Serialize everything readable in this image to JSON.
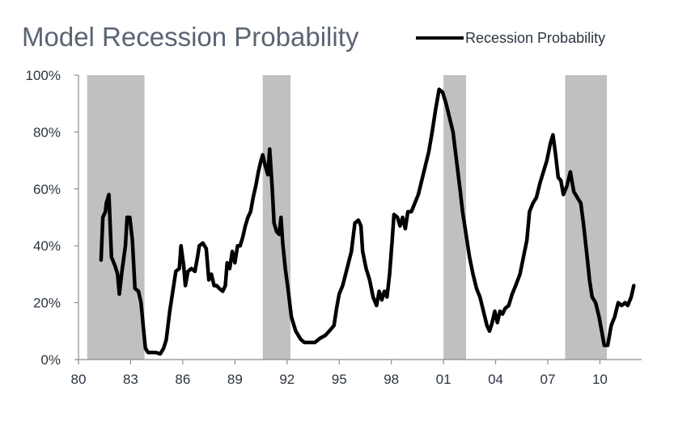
{
  "chart_data": {
    "type": "line",
    "title": "Model Recession Probability",
    "legend": {
      "label": "Recession Probability",
      "placement": "top-right"
    },
    "colors": {
      "line": "#000000",
      "recession_band": "#c0c0c0",
      "title": "#5a6573",
      "tick": "#2b3440"
    },
    "xlabel": "",
    "ylabel": "",
    "xlim": [
      1980,
      2012.4
    ],
    "ylim": [
      0,
      100
    ],
    "x_ticks": [
      {
        "value": 1980,
        "label": "80"
      },
      {
        "value": 1983,
        "label": "83"
      },
      {
        "value": 1986,
        "label": "86"
      },
      {
        "value": 1989,
        "label": "89"
      },
      {
        "value": 1992,
        "label": "92"
      },
      {
        "value": 1995,
        "label": "95"
      },
      {
        "value": 1998,
        "label": "98"
      },
      {
        "value": 2001,
        "label": "01"
      },
      {
        "value": 2004,
        "label": "04"
      },
      {
        "value": 2007,
        "label": "07"
      },
      {
        "value": 2010,
        "label": "10"
      }
    ],
    "y_ticks": [
      {
        "value": 0,
        "label": "0%"
      },
      {
        "value": 20,
        "label": "20%"
      },
      {
        "value": 40,
        "label": "40%"
      },
      {
        "value": 60,
        "label": "60%"
      },
      {
        "value": 80,
        "label": "80%"
      },
      {
        "value": 100,
        "label": "100%"
      }
    ],
    "recession_bands": [
      {
        "start": 1980.5,
        "end": 1983.8
      },
      {
        "start": 1990.6,
        "end": 1992.2
      },
      {
        "start": 2001.0,
        "end": 2002.3
      },
      {
        "start": 2008.0,
        "end": 2010.4
      }
    ],
    "series": [
      {
        "name": "Recession Probability",
        "points": [
          [
            1981.3,
            35
          ],
          [
            1981.4,
            50
          ],
          [
            1981.55,
            52
          ],
          [
            1981.6,
            55
          ],
          [
            1981.75,
            58
          ],
          [
            1981.9,
            36
          ],
          [
            1982.1,
            33
          ],
          [
            1982.25,
            30
          ],
          [
            1982.35,
            23
          ],
          [
            1982.5,
            31
          ],
          [
            1982.7,
            40
          ],
          [
            1982.8,
            50
          ],
          [
            1982.95,
            50
          ],
          [
            1983.1,
            42
          ],
          [
            1983.25,
            25
          ],
          [
            1983.45,
            24
          ],
          [
            1983.6,
            20
          ],
          [
            1983.75,
            10
          ],
          [
            1983.85,
            4
          ],
          [
            1984.0,
            2.5
          ],
          [
            1984.2,
            2.5
          ],
          [
            1984.45,
            2.5
          ],
          [
            1984.7,
            2
          ],
          [
            1984.9,
            4
          ],
          [
            1985.05,
            7
          ],
          [
            1985.25,
            17
          ],
          [
            1985.45,
            25
          ],
          [
            1985.6,
            31
          ],
          [
            1985.8,
            32
          ],
          [
            1985.9,
            40
          ],
          [
            1986.05,
            33
          ],
          [
            1986.15,
            26
          ],
          [
            1986.3,
            31
          ],
          [
            1986.5,
            32
          ],
          [
            1986.7,
            31
          ],
          [
            1986.85,
            36
          ],
          [
            1986.95,
            40
          ],
          [
            1987.15,
            41
          ],
          [
            1987.35,
            39
          ],
          [
            1987.5,
            28
          ],
          [
            1987.65,
            30
          ],
          [
            1987.8,
            26
          ],
          [
            1987.95,
            26
          ],
          [
            1988.1,
            25
          ],
          [
            1988.3,
            24
          ],
          [
            1988.45,
            26
          ],
          [
            1988.55,
            34
          ],
          [
            1988.7,
            32
          ],
          [
            1988.85,
            38
          ],
          [
            1989.0,
            34
          ],
          [
            1989.15,
            40
          ],
          [
            1989.3,
            40
          ],
          [
            1989.45,
            43
          ],
          [
            1989.6,
            47
          ],
          [
            1989.75,
            50
          ],
          [
            1989.9,
            52
          ],
          [
            1990.05,
            57
          ],
          [
            1990.2,
            61
          ],
          [
            1990.35,
            66
          ],
          [
            1990.5,
            70
          ],
          [
            1990.6,
            72
          ],
          [
            1990.75,
            68
          ],
          [
            1990.9,
            65
          ],
          [
            1991.0,
            74
          ],
          [
            1991.15,
            60
          ],
          [
            1991.25,
            48
          ],
          [
            1991.4,
            45
          ],
          [
            1991.55,
            44
          ],
          [
            1991.65,
            50
          ],
          [
            1991.75,
            41
          ],
          [
            1991.9,
            32
          ],
          [
            1992.05,
            25
          ],
          [
            1992.25,
            15
          ],
          [
            1992.5,
            10
          ],
          [
            1992.8,
            7
          ],
          [
            1993.0,
            6
          ],
          [
            1993.3,
            6
          ],
          [
            1993.6,
            6
          ],
          [
            1993.9,
            7.5
          ],
          [
            1994.2,
            8.5
          ],
          [
            1994.5,
            10.5
          ],
          [
            1994.7,
            12
          ],
          [
            1994.85,
            18
          ],
          [
            1995.0,
            23
          ],
          [
            1995.2,
            26
          ],
          [
            1995.45,
            32
          ],
          [
            1995.7,
            38
          ],
          [
            1995.9,
            48
          ],
          [
            1996.1,
            49
          ],
          [
            1996.25,
            47
          ],
          [
            1996.35,
            38
          ],
          [
            1996.55,
            32
          ],
          [
            1996.75,
            28
          ],
          [
            1996.95,
            22
          ],
          [
            1997.15,
            19
          ],
          [
            1997.3,
            24
          ],
          [
            1997.45,
            21
          ],
          [
            1997.6,
            24
          ],
          [
            1997.75,
            22
          ],
          [
            1997.9,
            30
          ],
          [
            1998.05,
            42
          ],
          [
            1998.15,
            51
          ],
          [
            1998.35,
            50
          ],
          [
            1998.5,
            47
          ],
          [
            1998.65,
            50
          ],
          [
            1998.8,
            46
          ],
          [
            1998.95,
            52
          ],
          [
            1999.15,
            52
          ],
          [
            1999.35,
            55
          ],
          [
            1999.55,
            58
          ],
          [
            1999.75,
            63
          ],
          [
            1999.95,
            68
          ],
          [
            2000.15,
            73
          ],
          [
            2000.35,
            80
          ],
          [
            2000.55,
            88
          ],
          [
            2000.75,
            95
          ],
          [
            2000.95,
            94
          ],
          [
            2001.15,
            90
          ],
          [
            2001.35,
            85
          ],
          [
            2001.55,
            80
          ],
          [
            2001.75,
            70
          ],
          [
            2001.95,
            60
          ],
          [
            2002.1,
            52
          ],
          [
            2002.3,
            44
          ],
          [
            2002.5,
            36
          ],
          [
            2002.7,
            30
          ],
          [
            2002.9,
            25
          ],
          [
            2003.1,
            22
          ],
          [
            2003.3,
            17
          ],
          [
            2003.5,
            12
          ],
          [
            2003.65,
            10
          ],
          [
            2003.8,
            13
          ],
          [
            2003.95,
            17
          ],
          [
            2004.1,
            13
          ],
          [
            2004.25,
            17
          ],
          [
            2004.4,
            16
          ],
          [
            2004.55,
            18
          ],
          [
            2004.75,
            19
          ],
          [
            2004.95,
            23
          ],
          [
            2005.15,
            26
          ],
          [
            2005.4,
            30
          ],
          [
            2005.6,
            36
          ],
          [
            2005.8,
            42
          ],
          [
            2005.95,
            52
          ],
          [
            2006.15,
            55
          ],
          [
            2006.35,
            57
          ],
          [
            2006.55,
            62
          ],
          [
            2006.75,
            66
          ],
          [
            2006.95,
            70
          ],
          [
            2007.15,
            76
          ],
          [
            2007.3,
            79
          ],
          [
            2007.45,
            72
          ],
          [
            2007.6,
            64
          ],
          [
            2007.75,
            63
          ],
          [
            2007.9,
            58
          ],
          [
            2008.1,
            61
          ],
          [
            2008.3,
            66
          ],
          [
            2008.5,
            59
          ],
          [
            2008.7,
            57
          ],
          [
            2008.9,
            55
          ],
          [
            2009.05,
            48
          ],
          [
            2009.25,
            37
          ],
          [
            2009.4,
            28
          ],
          [
            2009.55,
            22
          ],
          [
            2009.75,
            20
          ],
          [
            2009.95,
            15
          ],
          [
            2010.1,
            10
          ],
          [
            2010.25,
            5
          ],
          [
            2010.45,
            5
          ],
          [
            2010.65,
            12
          ],
          [
            2010.85,
            15
          ],
          [
            2011.05,
            20
          ],
          [
            2011.25,
            19
          ],
          [
            2011.45,
            20
          ],
          [
            2011.6,
            19
          ],
          [
            2011.8,
            22
          ],
          [
            2011.95,
            26
          ]
        ]
      }
    ]
  }
}
